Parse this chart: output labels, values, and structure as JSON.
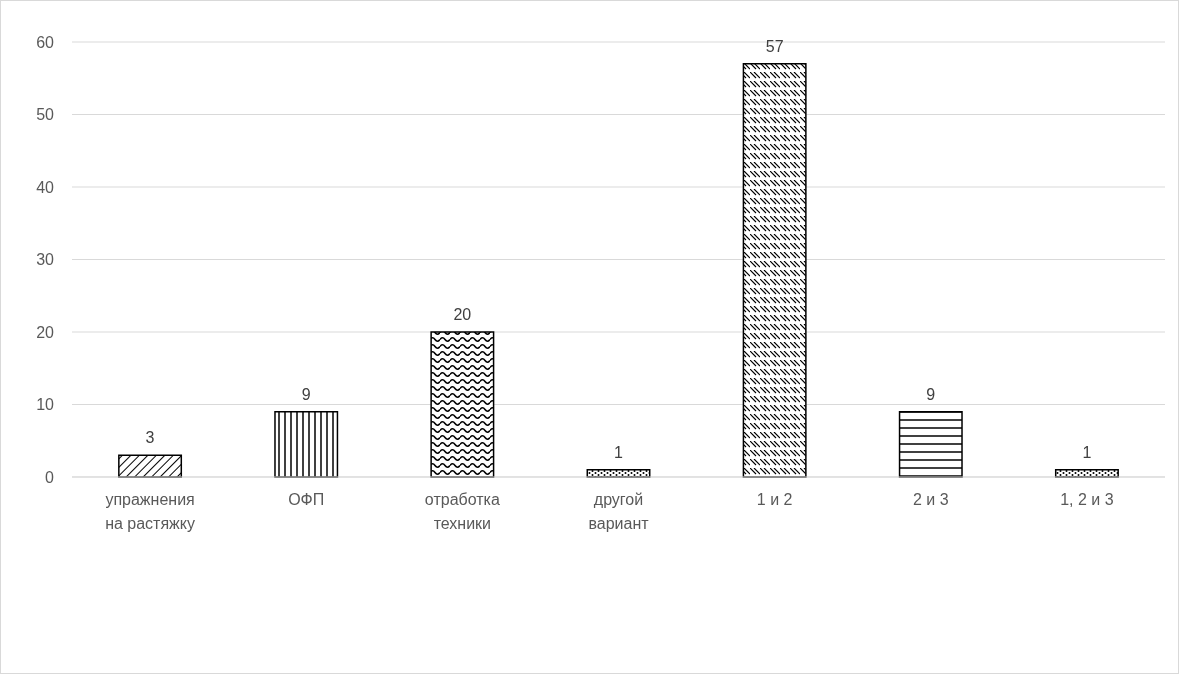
{
  "chart_data": {
    "type": "bar",
    "categories": [
      "упражнения на растяжку",
      "ОФП",
      "отработка техники",
      "другой вариант",
      "1 и 2",
      "2 и 3",
      "1, 2 и 3"
    ],
    "values": [
      3,
      9,
      20,
      1,
      57,
      9,
      1
    ],
    "ylim": [
      0,
      60
    ],
    "yticks": [
      0,
      10,
      20,
      30,
      40,
      50,
      60
    ],
    "grid": "y",
    "data_labels": true
  }
}
